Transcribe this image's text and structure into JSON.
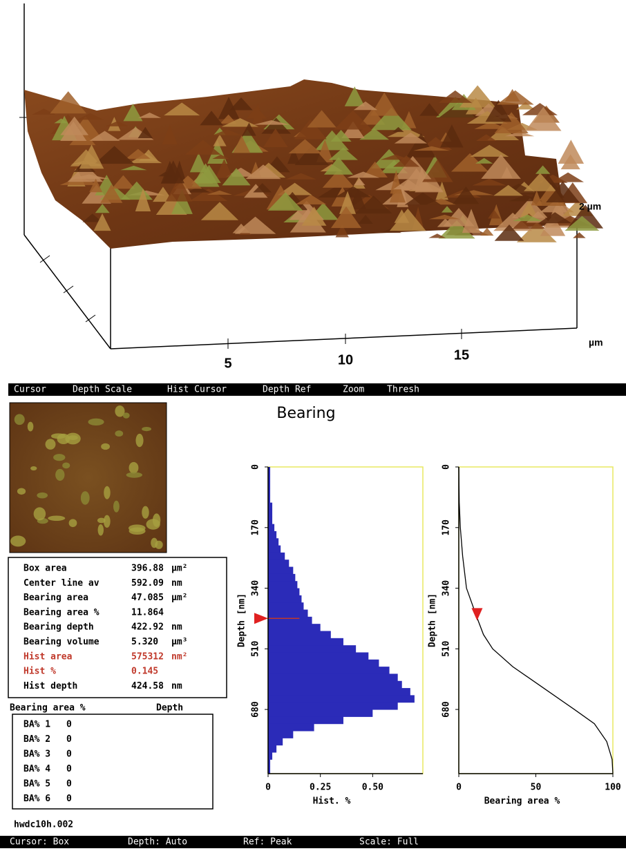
{
  "menu": [
    "Cursor",
    "Depth Scale",
    "Hist Cursor",
    "Depth Ref",
    "Zoom",
    "Thresh"
  ],
  "surface_plot": {
    "z_label": "2 µm",
    "x_ticks": [
      "5",
      "10",
      "15"
    ],
    "x_unit": "µm"
  },
  "title": "Bearing",
  "stats": [
    {
      "label": "Box area",
      "value": "396.88",
      "unit": "µm²"
    },
    {
      "label": "Center line av",
      "value": "592.09",
      "unit": "nm"
    },
    {
      "label": "Bearing area",
      "value": "47.085",
      "unit": "µm²"
    },
    {
      "label": "Bearing area %",
      "value": "11.864"
    },
    {
      "label": "Bearing depth",
      "value": "422.92",
      "unit": "nm"
    },
    {
      "label": "Bearing volume",
      "value": "5.320",
      "unit": "µm³"
    },
    {
      "label": "Hist area",
      "value": "575312",
      "unit": "nm²",
      "color": "#c0392b"
    },
    {
      "label": "Hist %",
      "value": "0.145",
      "color": "#c0392b"
    },
    {
      "label": "Hist depth",
      "value": "424.58",
      "unit": "nm"
    }
  ],
  "bearing_table": {
    "headers": [
      "Bearing area %",
      "Depth"
    ],
    "rows": [
      [
        "BA% 1",
        "0"
      ],
      [
        "BA% 2",
        "0"
      ],
      [
        "BA% 3",
        "0"
      ],
      [
        "BA% 4",
        "0"
      ],
      [
        "BA% 5",
        "0"
      ],
      [
        "BA% 6",
        "0"
      ]
    ]
  },
  "filename": "hwdc10h.002",
  "status": [
    "Cursor: Box",
    "Depth: Auto",
    "Ref: Peak",
    "Scale: Full"
  ],
  "chart_data": [
    {
      "type": "histogram",
      "x_label": "Hist. %",
      "y_label": "Depth [nm]",
      "color": "#2b2bb8",
      "y_inverted": true,
      "bins": [
        0,
        20,
        40,
        60,
        80,
        100,
        120,
        140,
        160,
        180,
        200,
        220,
        240,
        260,
        280,
        300,
        320,
        340,
        360,
        380,
        400,
        420,
        440,
        460,
        480,
        500,
        520,
        540,
        560,
        580,
        600,
        620,
        640,
        660,
        680,
        700,
        720,
        740,
        760,
        780,
        800,
        820,
        840,
        860
      ],
      "values": [
        0.01,
        0.01,
        0.01,
        0.01,
        0.01,
        0.02,
        0.02,
        0.02,
        0.03,
        0.04,
        0.05,
        0.06,
        0.08,
        0.1,
        0.12,
        0.13,
        0.14,
        0.15,
        0.16,
        0.17,
        0.19,
        0.21,
        0.25,
        0.3,
        0.36,
        0.42,
        0.48,
        0.53,
        0.58,
        0.62,
        0.64,
        0.68,
        0.7,
        0.62,
        0.5,
        0.36,
        0.22,
        0.12,
        0.07,
        0.04,
        0.02,
        0.01,
        0.01
      ],
      "xlim": [
        0,
        0.74
      ],
      "xticks": [
        0,
        0.25,
        {
          "value": 0.5,
          "label": "0.50"
        }
      ],
      "ylim": [
        0,
        860
      ],
      "yticks": [
        0,
        170,
        340,
        510,
        680
      ]
    },
    {
      "type": "line",
      "x_label": "Bearing area %",
      "y_label": "Depth [nm]",
      "color": "#000000",
      "y_inverted": true,
      "depth": [
        0,
        100,
        170,
        250,
        340,
        422.92,
        470,
        510,
        560,
        620,
        680,
        720,
        770,
        820,
        860
      ],
      "values": [
        0,
        0.3,
        1,
        2.5,
        5,
        11.864,
        16,
        22,
        35,
        55,
        75,
        88,
        96,
        99.5,
        100
      ],
      "xlim": [
        0,
        100
      ],
      "xticks": [
        0,
        50,
        100
      ],
      "ylim": [
        0,
        860
      ],
      "yticks": [
        0,
        170,
        340,
        510,
        680
      ]
    }
  ]
}
